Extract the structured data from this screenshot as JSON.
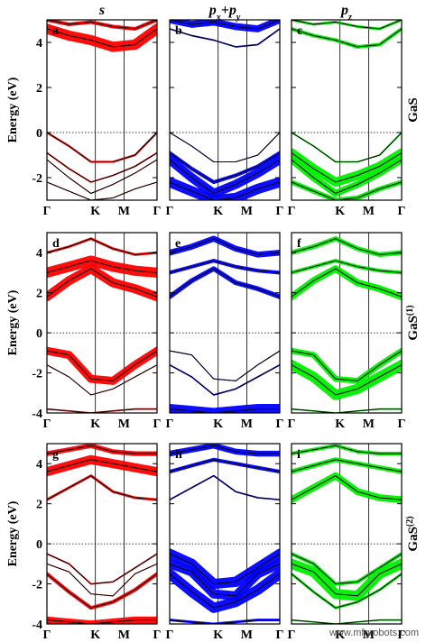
{
  "watermark": "www.mfgrobots.com",
  "column_titles": [
    {
      "main": "s",
      "sub": ""
    },
    {
      "main": "p",
      "sub": "x",
      "mid": "+p",
      "sub2": "y"
    },
    {
      "main": "p",
      "sub": "z"
    }
  ],
  "row_labels": [
    {
      "text": "GaS",
      "sup": ""
    },
    {
      "text": "GaS",
      "sup": "(1)"
    },
    {
      "text": "GaS",
      "sup": "(2)"
    }
  ],
  "y_axis_label": "Energy (eV)",
  "x_ticks": [
    "Γ",
    "K",
    "M",
    "Γ"
  ],
  "colors": {
    "s": "#ff0000",
    "pxpy": "#0000ff",
    "pz": "#00ee00",
    "band": "#000000",
    "fermi": "#000000"
  },
  "chart_data": [
    {
      "type": "line",
      "row": "GaS",
      "ylabel": "Energy (eV)",
      "ylim": [
        -3,
        5
      ],
      "yticks": [
        -2,
        0,
        2,
        4
      ],
      "fermi_level": 0,
      "k_path": [
        "Γ",
        "K",
        "M",
        "Γ"
      ],
      "panels": [
        {
          "label": "a",
          "orbital": "s",
          "color": "#ff0000"
        },
        {
          "label": "b",
          "orbital": "px+py",
          "color": "#0000ff"
        },
        {
          "label": "c",
          "orbital": "pz",
          "color": "#00ee00"
        }
      ],
      "bands": [
        {
          "name": "cb1",
          "values": [
            4.6,
            4.3,
            4.1,
            3.8,
            3.9,
            4.6
          ],
          "weights": {
            "s": 0.9,
            "pxpy": 0.1,
            "pz": 0.3
          }
        },
        {
          "name": "cb2",
          "values": [
            5.0,
            4.8,
            4.9,
            4.7,
            4.6,
            5.0
          ],
          "weights": {
            "s": 0.3,
            "pxpy": 0.6,
            "pz": 0.2
          }
        },
        {
          "name": "vb1",
          "values": [
            0.0,
            -0.6,
            -1.3,
            -1.3,
            -1.0,
            0.0
          ],
          "weights": {
            "s": 0.15,
            "pxpy": 0.05,
            "pz": 0.1
          }
        },
        {
          "name": "vb2",
          "values": [
            -0.9,
            -1.6,
            -2.2,
            -1.9,
            -1.5,
            -0.9
          ],
          "weights": {
            "s": 0.1,
            "pxpy": 0.3,
            "pz": 0.8
          }
        },
        {
          "name": "vb3",
          "values": [
            -1.2,
            -2.0,
            -2.7,
            -2.3,
            -1.8,
            -1.2
          ],
          "weights": {
            "s": 0.05,
            "pxpy": 0.8,
            "pz": 0.6
          }
        },
        {
          "name": "vb4",
          "values": [
            -2.2,
            -2.6,
            -3.0,
            -2.9,
            -2.5,
            -2.2
          ],
          "weights": {
            "s": 0.05,
            "pxpy": 0.9,
            "pz": 0.4
          }
        }
      ]
    },
    {
      "type": "line",
      "row": "GaS(1)",
      "ylabel": "Energy (eV)",
      "ylim": [
        -4,
        5
      ],
      "yticks": [
        -4,
        -2,
        0,
        2,
        4
      ],
      "fermi_level": 0,
      "k_path": [
        "Γ",
        "K",
        "M",
        "Γ"
      ],
      "panels": [
        {
          "label": "d",
          "orbital": "s",
          "color": "#ff0000"
        },
        {
          "label": "e",
          "orbital": "px+py",
          "color": "#0000ff"
        },
        {
          "label": "f",
          "orbital": "pz",
          "color": "#00ee00"
        }
      ],
      "bands": [
        {
          "name": "cb1",
          "values": [
            1.8,
            2.6,
            3.2,
            2.5,
            2.2,
            1.8
          ],
          "weights": {
            "s": 0.8,
            "pxpy": 0.4,
            "pz": 0.6
          }
        },
        {
          "name": "cb2",
          "values": [
            3.0,
            3.3,
            3.6,
            3.3,
            3.1,
            3.0
          ],
          "weights": {
            "s": 0.9,
            "pxpy": 0.3,
            "pz": 0.3
          }
        },
        {
          "name": "cb3",
          "values": [
            4.0,
            4.3,
            4.7,
            4.2,
            3.9,
            4.0
          ],
          "weights": {
            "s": 0.2,
            "pxpy": 0.5,
            "pz": 0.4
          }
        },
        {
          "name": "vb1",
          "values": [
            -0.9,
            -1.1,
            -2.3,
            -2.4,
            -1.6,
            -0.9
          ],
          "weights": {
            "s": 0.7,
            "pxpy": 0.05,
            "pz": 0.5
          }
        },
        {
          "name": "vb2",
          "values": [
            -1.6,
            -2.2,
            -3.1,
            -2.8,
            -2.2,
            -1.6
          ],
          "weights": {
            "s": 0.05,
            "pxpy": 0.1,
            "pz": 0.9
          }
        },
        {
          "name": "vb3",
          "values": [
            -3.8,
            -3.9,
            -4.0,
            -3.9,
            -3.8,
            -3.8
          ],
          "weights": {
            "s": 0.1,
            "pxpy": 0.9,
            "pz": 0.1
          }
        }
      ]
    },
    {
      "type": "line",
      "row": "GaS(2)",
      "ylabel": "Energy (eV)",
      "ylim": [
        -4,
        5
      ],
      "yticks": [
        -4,
        -2,
        0,
        2,
        4
      ],
      "fermi_level": 0,
      "k_path": [
        "Γ",
        "K",
        "M",
        "Γ"
      ],
      "panels": [
        {
          "label": "g",
          "orbital": "s",
          "color": "#ff0000"
        },
        {
          "label": "h",
          "orbital": "px+py",
          "color": "#0000ff"
        },
        {
          "label": "i",
          "orbital": "pz",
          "color": "#00ee00"
        }
      ],
      "bands": [
        {
          "name": "cb1",
          "values": [
            2.2,
            2.8,
            3.4,
            2.6,
            2.3,
            2.2
          ],
          "weights": {
            "s": 0.2,
            "pxpy": 0.1,
            "pz": 0.6
          }
        },
        {
          "name": "cb2",
          "values": [
            3.6,
            3.9,
            4.2,
            4.0,
            3.8,
            3.6
          ],
          "weights": {
            "s": 0.8,
            "pxpy": 0.3,
            "pz": 0.4
          }
        },
        {
          "name": "cb3",
          "values": [
            4.5,
            4.7,
            4.9,
            4.6,
            4.5,
            4.5
          ],
          "weights": {
            "s": 0.4,
            "pxpy": 0.5,
            "pz": 0.3
          }
        },
        {
          "name": "vb1",
          "values": [
            -0.5,
            -1.0,
            -2.0,
            -1.9,
            -1.2,
            -0.5
          ],
          "weights": {
            "s": 0.1,
            "pxpy": 0.9,
            "pz": 0.3
          }
        },
        {
          "name": "vb2",
          "values": [
            -1.0,
            -1.4,
            -2.5,
            -2.6,
            -1.5,
            -1.0
          ],
          "weights": {
            "s": 0.05,
            "pxpy": 0.8,
            "pz": 0.9
          }
        },
        {
          "name": "vb3",
          "values": [
            -1.5,
            -2.4,
            -3.2,
            -2.9,
            -2.3,
            -1.5
          ],
          "weights": {
            "s": 0.3,
            "pxpy": 0.9,
            "pz": 0.2
          }
        },
        {
          "name": "vb4",
          "values": [
            -3.8,
            -3.9,
            -4.0,
            -3.9,
            -3.8,
            -3.8
          ],
          "weights": {
            "s": 0.6,
            "pxpy": 0.2,
            "pz": 0.1
          }
        }
      ]
    }
  ]
}
